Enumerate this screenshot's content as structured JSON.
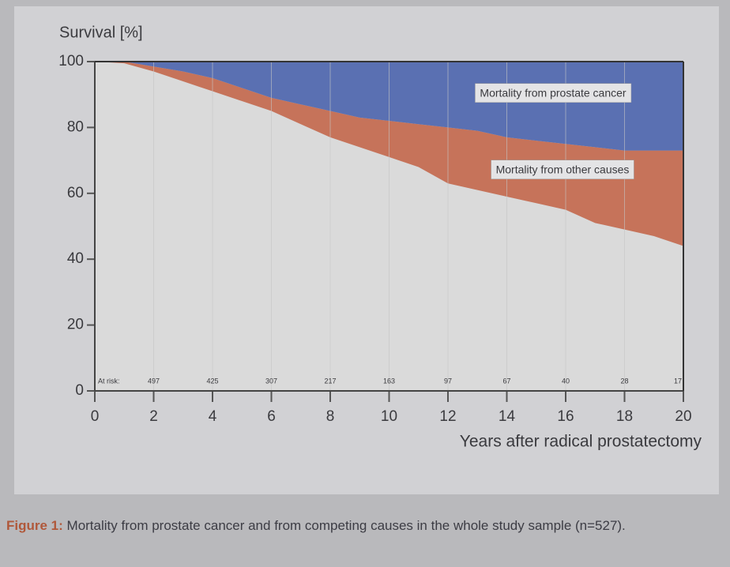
{
  "chart_data": {
    "type": "stacked_area",
    "y_label": "Survival [%]",
    "x_label": "Years after radical prostatectomy",
    "x": [
      0,
      1,
      2,
      3,
      4,
      5,
      6,
      7,
      8,
      9,
      10,
      11,
      12,
      13,
      14,
      15,
      16,
      17,
      18,
      19,
      20
    ],
    "series": [
      {
        "color": "#dadada",
        "values": [
          100,
          99.5,
          97,
          94,
          91,
          88,
          85,
          81,
          77,
          74,
          71,
          68,
          63,
          61,
          59,
          57,
          55,
          51,
          49,
          47,
          44
        ]
      },
      {
        "name": "Mortality from other causes",
        "color": "#c6735a",
        "values": [
          0,
          0.5,
          1.5,
          3,
          4,
          4,
          4,
          6,
          8,
          9,
          11,
          13,
          17,
          18,
          18,
          19,
          20,
          23,
          24,
          26,
          29
        ]
      },
      {
        "name": "Mortality from prostate cancer",
        "color": "#5a70b2",
        "values": [
          0,
          0,
          1.5,
          3,
          5,
          8,
          11,
          13,
          15,
          17,
          18,
          19,
          20,
          21,
          23,
          24,
          25,
          26,
          27,
          27,
          27
        ]
      }
    ],
    "xlim": [
      0,
      20
    ],
    "xticks": [
      0,
      2,
      4,
      6,
      8,
      10,
      12,
      14,
      16,
      18,
      20
    ],
    "ylim": [
      0,
      100
    ],
    "yticks": [
      0,
      20,
      40,
      60,
      80,
      100
    ],
    "grid": true,
    "at_risk": {
      "label": "At risk:",
      "values": [
        497,
        425,
        307,
        217,
        163,
        97,
        67,
        40,
        28,
        17
      ]
    }
  },
  "caption": {
    "label": "Figure 1:",
    "text": "Mortality from prostate cancer and from competing causes in the whole study sample (n=527)."
  }
}
